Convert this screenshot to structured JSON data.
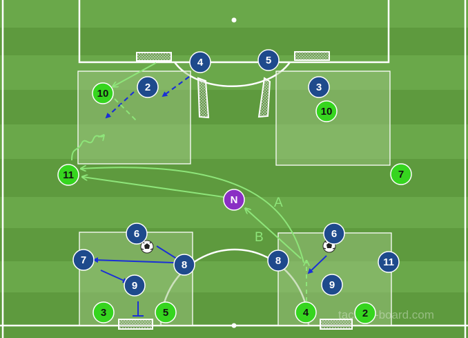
{
  "pitch": {
    "stripe_dark": "#5e9a3e",
    "stripe_light": "#6aa84a",
    "line_color": "#ffffff",
    "zone_fill": "#9cc47f"
  },
  "colors": {
    "blue_team": "#1e4a8c",
    "green_team": "#36d51f",
    "neutral": "#8a2fc4",
    "blue_arrow": "#1a2fd6",
    "green_arrow": "#8ee57a"
  },
  "players": {
    "top_blue_4": "4",
    "top_blue_5": "5",
    "top_blue_2": "2",
    "top_blue_3": "3",
    "top_green_10_left": "10",
    "top_green_10_right": "10",
    "mid_green_11": "11",
    "mid_green_7": "7",
    "neutral": "N",
    "bl_blue_6": "6",
    "bl_blue_7": "7",
    "bl_blue_8": "8",
    "bl_blue_9": "9",
    "bl_green_3": "3",
    "bl_green_5": "5",
    "br_blue_6": "6",
    "br_blue_8": "8",
    "br_blue_9": "9",
    "br_blue_11": "11",
    "br_green_4": "4",
    "br_green_2": "2"
  },
  "labels": {
    "arrow_a": "A",
    "arrow_b": "B"
  },
  "watermark": "tactical-board.com"
}
